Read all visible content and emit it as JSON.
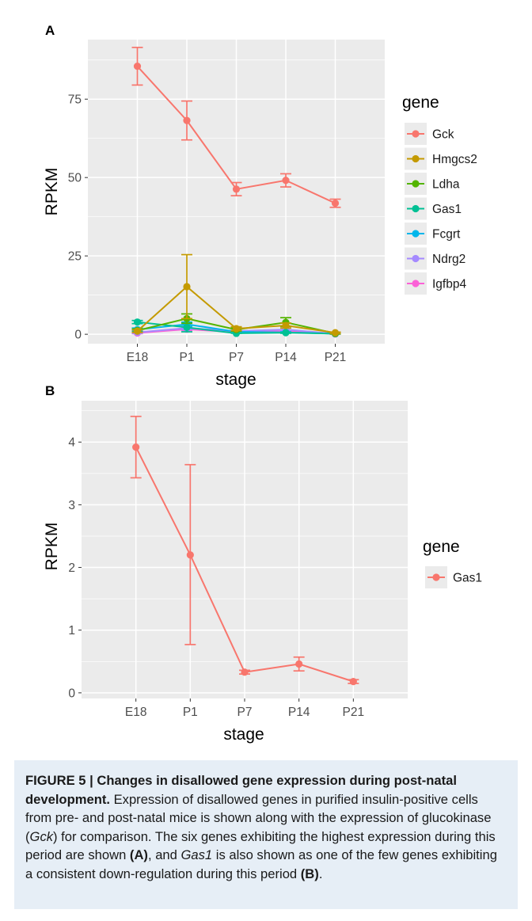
{
  "panels": {
    "a": {
      "label": "A"
    },
    "b": {
      "label": "B"
    }
  },
  "caption": {
    "title": "FIGURE 5 | Changes in disallowed gene expression during post-natal development.",
    "p1": " Expression of disallowed genes in purified insulin-positive cells from pre- and post-natal mice is shown along with the expression of glucokinase (",
    "gck": "Gck",
    "p2": ") for comparison. The six genes exhibiting the highest expression during this period are shown ",
    "refA": "(A)",
    "p3": ", and ",
    "gas1": "Gas1",
    "p4": " is also shown as one of the few genes exhibiting a consistent down-regulation during this period ",
    "refB": "(B)",
    "p5": "."
  },
  "colors": {
    "panel_bg": "#ebebeb",
    "grid": "#ffffff",
    "caption_bg": "#e6eef6"
  },
  "chart_data": [
    {
      "type": "line",
      "panel": "A",
      "xlabel": "stage",
      "ylabel": "RPKM",
      "categories": [
        "E18",
        "P1",
        "P7",
        "P14",
        "P21"
      ],
      "ylim": [
        -3,
        94
      ],
      "yticks": [
        0,
        25,
        50,
        75
      ],
      "grid": true,
      "legend": {
        "title": "gene",
        "position": "right"
      },
      "series": [
        {
          "name": "Gck",
          "color": "#f8766d",
          "values": [
            85.5,
            68.2,
            46.3,
            49.1,
            41.8
          ],
          "err_low": [
            79.5,
            62.0,
            44.2,
            47.0,
            40.5
          ],
          "err_high": [
            91.5,
            74.4,
            48.4,
            51.2,
            43.1
          ]
        },
        {
          "name": "Hmgcs2",
          "color": "#c49a00",
          "values": [
            1.0,
            15.2,
            1.8,
            2.8,
            0.5
          ],
          "err_low": [
            0.6,
            5.0,
            1.2,
            2.0,
            0.3
          ],
          "err_high": [
            1.4,
            25.4,
            2.4,
            3.6,
            0.7
          ]
        },
        {
          "name": "Ldha",
          "color": "#53b400",
          "values": [
            1.2,
            5.0,
            1.5,
            3.8,
            0.3
          ],
          "err_low": [
            0.7,
            3.5,
            1.0,
            2.5,
            0.1
          ],
          "err_high": [
            1.7,
            6.5,
            2.0,
            5.3,
            0.5
          ]
        },
        {
          "name": "Gas1",
          "color": "#00c094",
          "values": [
            3.9,
            2.2,
            0.3,
            0.5,
            0.2
          ],
          "err_low": [
            3.4,
            0.8,
            0.3,
            0.3,
            0.1
          ],
          "err_high": [
            4.4,
            3.6,
            0.4,
            0.6,
            0.2
          ]
        },
        {
          "name": "Fcgrt",
          "color": "#00b6eb",
          "values": [
            1.5,
            3.2,
            0.8,
            0.6,
            0.2
          ],
          "err_low": [
            1.0,
            2.5,
            0.5,
            0.4,
            0.1
          ],
          "err_high": [
            2.0,
            3.9,
            1.1,
            0.8,
            0.3
          ]
        },
        {
          "name": "Ndrg2",
          "color": "#a58aff",
          "values": [
            0.6,
            2.0,
            1.0,
            1.5,
            0.2
          ],
          "err_low": [
            0.3,
            1.5,
            0.7,
            1.0,
            0.1
          ],
          "err_high": [
            0.9,
            2.5,
            1.3,
            2.0,
            0.3
          ]
        },
        {
          "name": "Igfbp4",
          "color": "#fb61d7",
          "values": [
            0.4,
            1.6,
            0.7,
            1.0,
            0.1
          ],
          "err_low": [
            0.2,
            1.2,
            0.5,
            0.7,
            0.05
          ],
          "err_high": [
            0.6,
            2.0,
            0.9,
            1.3,
            0.15
          ]
        }
      ]
    },
    {
      "type": "line",
      "panel": "B",
      "xlabel": "stage",
      "ylabel": "RPKM",
      "categories": [
        "E18",
        "P1",
        "P7",
        "P14",
        "P21"
      ],
      "ylim": [
        -0.09,
        4.66
      ],
      "yticks": [
        0,
        1,
        2,
        3,
        4
      ],
      "grid": true,
      "legend": {
        "title": "gene",
        "position": "right"
      },
      "series": [
        {
          "name": "Gas1",
          "color": "#f8766d",
          "values": [
            3.92,
            2.2,
            0.33,
            0.46,
            0.18
          ],
          "err_low": [
            3.43,
            0.77,
            0.3,
            0.35,
            0.15
          ],
          "err_high": [
            4.41,
            3.64,
            0.36,
            0.57,
            0.21
          ]
        }
      ]
    }
  ]
}
